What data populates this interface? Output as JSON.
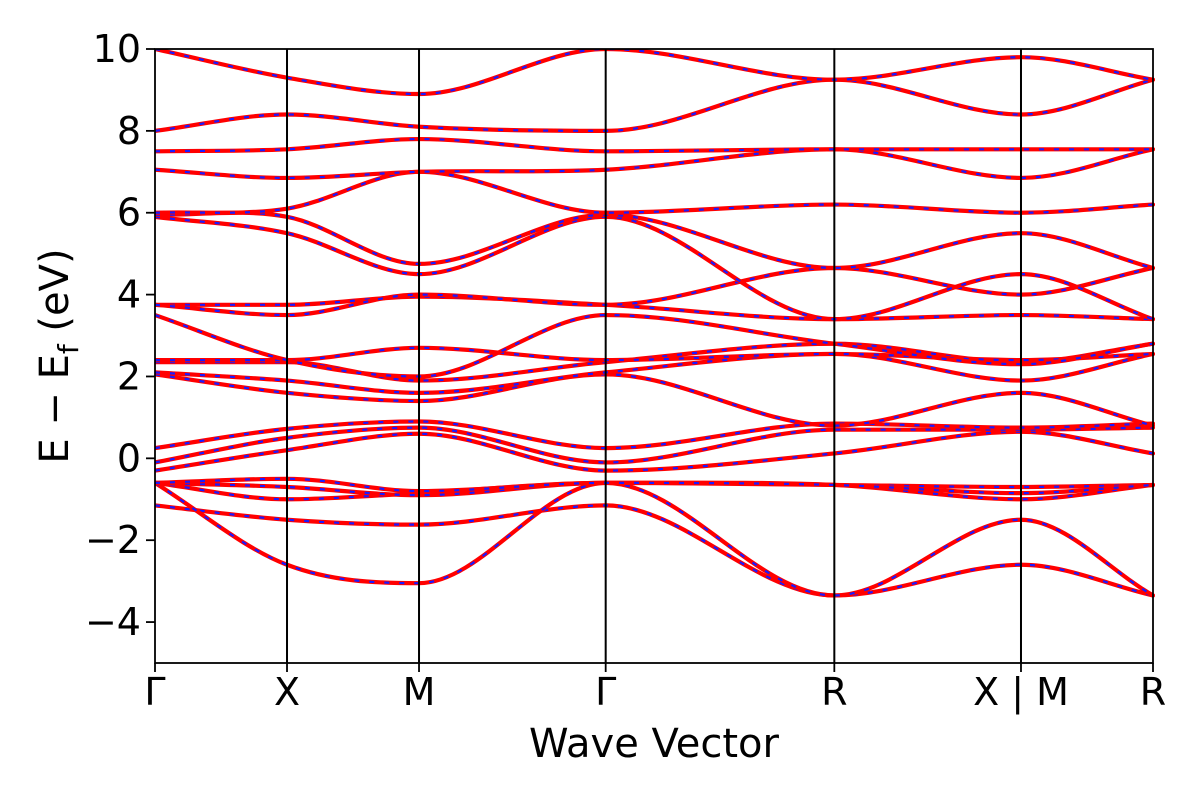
{
  "chart_data": {
    "type": "line",
    "xlabel": "Wave Vector",
    "ylabel_main": "E − E",
    "ylabel_sub": "f",
    "ylabel_unit": " (eV)",
    "ylim": [
      -5,
      10
    ],
    "yticks": [
      -4,
      -2,
      0,
      2,
      4,
      6,
      8,
      10
    ],
    "ytick_labels": [
      "−4",
      "−2",
      "0",
      "2",
      "4",
      "6",
      "8",
      "10"
    ],
    "k_points": [
      {
        "label": "Γ",
        "k": 0.0
      },
      {
        "label": "X",
        "k": 0.5
      },
      {
        "label": "M",
        "k": 1.0
      },
      {
        "label": "Γ",
        "k": 1.707
      },
      {
        "label": "R",
        "k": 2.573
      },
      {
        "label": "X | M",
        "k": 3.28
      },
      {
        "label": "R",
        "k": 3.78
      }
    ],
    "series_colors": {
      "primary": "#ff0000",
      "secondary": "#1a1aff"
    },
    "series": [
      {
        "x": [
          0,
          0.5,
          1.0,
          1.707,
          2.573,
          3.28,
          3.78
        ],
        "y": [
          -1.15,
          -1.5,
          -1.62,
          -1.15,
          -3.35,
          -2.6,
          -3.35
        ]
      },
      {
        "x": [
          0,
          0.5,
          1.0,
          1.707,
          2.573,
          3.28,
          3.78
        ],
        "y": [
          -0.6,
          -2.6,
          -3.05,
          -0.6,
          -3.35,
          -1.5,
          -3.35
        ]
      },
      {
        "x": [
          0,
          0.5,
          1.0,
          1.707,
          2.573,
          3.28,
          3.78
        ],
        "y": [
          -0.6,
          -1.0,
          -0.85,
          -0.6,
          -0.65,
          -1.0,
          -0.65
        ]
      },
      {
        "x": [
          0,
          0.5,
          1.0,
          1.707,
          2.573,
          3.28,
          3.78
        ],
        "y": [
          -0.6,
          -0.7,
          -0.9,
          -0.6,
          -0.65,
          -0.7,
          -0.65
        ]
      },
      {
        "x": [
          0,
          0.5,
          1.0,
          1.707,
          2.573,
          3.28,
          3.78
        ],
        "y": [
          -0.6,
          -0.5,
          -0.8,
          -0.6,
          -0.65,
          -0.85,
          -0.65
        ]
      },
      {
        "x": [
          0,
          0.5,
          1.0,
          1.707,
          2.573,
          3.28,
          3.78
        ],
        "y": [
          -0.3,
          0.2,
          0.6,
          -0.3,
          0.12,
          0.65,
          0.12
        ]
      },
      {
        "x": [
          0,
          0.5,
          1.0,
          1.707,
          2.573,
          3.28,
          3.78
        ],
        "y": [
          -0.1,
          0.5,
          0.75,
          -0.1,
          0.7,
          0.7,
          0.75
        ]
      },
      {
        "x": [
          0,
          0.5,
          1.0,
          1.707,
          2.573,
          3.28,
          3.78
        ],
        "y": [
          0.25,
          0.72,
          0.9,
          0.25,
          0.85,
          0.75,
          0.85
        ]
      },
      {
        "x": [
          0,
          0.5,
          1.0,
          1.707,
          2.573,
          3.28,
          3.78
        ],
        "y": [
          2.05,
          1.6,
          1.4,
          2.05,
          0.8,
          1.6,
          0.8
        ]
      },
      {
        "x": [
          0,
          0.5,
          1.0,
          1.707,
          2.573,
          3.28,
          3.78
        ],
        "y": [
          2.1,
          1.9,
          1.6,
          2.1,
          2.55,
          1.9,
          2.55
        ]
      },
      {
        "x": [
          0,
          0.5,
          1.0,
          1.707,
          2.573,
          3.28,
          3.78
        ],
        "y": [
          2.35,
          2.35,
          1.9,
          2.35,
          2.8,
          2.35,
          2.8
        ]
      },
      {
        "x": [
          0,
          0.5,
          1.0,
          1.707,
          2.573,
          3.28,
          3.78
        ],
        "y": [
          2.4,
          2.4,
          2.7,
          2.4,
          2.55,
          2.4,
          2.55
        ]
      },
      {
        "x": [
          0,
          0.5,
          1.0,
          1.707,
          2.573,
          3.28,
          3.78
        ],
        "y": [
          3.5,
          2.4,
          2.0,
          3.5,
          2.8,
          2.3,
          2.8
        ]
      },
      {
        "x": [
          0,
          0.5,
          1.0,
          1.707,
          2.573,
          3.28,
          3.78
        ],
        "y": [
          3.75,
          3.75,
          3.95,
          3.75,
          3.4,
          3.5,
          3.4
        ]
      },
      {
        "x": [
          0,
          0.5,
          1.0,
          1.707,
          2.573,
          3.28,
          3.78
        ],
        "y": [
          3.75,
          3.5,
          4.0,
          3.75,
          4.65,
          4.0,
          4.65
        ]
      },
      {
        "x": [
          0,
          0.5,
          1.0,
          1.707,
          2.573,
          3.28,
          3.78
        ],
        "y": [
          5.9,
          5.5,
          4.5,
          5.9,
          3.4,
          4.5,
          3.4
        ]
      },
      {
        "x": [
          0,
          0.5,
          1.0,
          1.707,
          2.573,
          3.28,
          3.78
        ],
        "y": [
          5.95,
          5.9,
          4.75,
          5.95,
          4.65,
          5.5,
          4.65
        ]
      },
      {
        "x": [
          0,
          0.5,
          1.0,
          1.707,
          2.573,
          3.28,
          3.78
        ],
        "y": [
          6.0,
          6.1,
          7.0,
          6.0,
          6.2,
          6.0,
          6.2
        ]
      },
      {
        "x": [
          0,
          0.5,
          1.0,
          1.707,
          2.573,
          3.28,
          3.78
        ],
        "y": [
          7.05,
          6.85,
          7.0,
          7.05,
          7.55,
          6.85,
          7.55
        ]
      },
      {
        "x": [
          0,
          0.5,
          1.0,
          1.707,
          2.573,
          3.28,
          3.78
        ],
        "y": [
          7.5,
          7.55,
          7.8,
          7.5,
          7.55,
          7.55,
          7.55
        ]
      },
      {
        "x": [
          0,
          0.5,
          1.0,
          1.707,
          2.573,
          3.28,
          3.78
        ],
        "y": [
          8.0,
          8.4,
          8.1,
          8.0,
          9.25,
          8.4,
          9.25
        ]
      },
      {
        "x": [
          0,
          0.5,
          1.0,
          1.707,
          2.573,
          3.28,
          3.78
        ],
        "y": [
          10.0,
          9.3,
          8.9,
          10.0,
          9.25,
          9.8,
          9.25
        ]
      }
    ]
  }
}
